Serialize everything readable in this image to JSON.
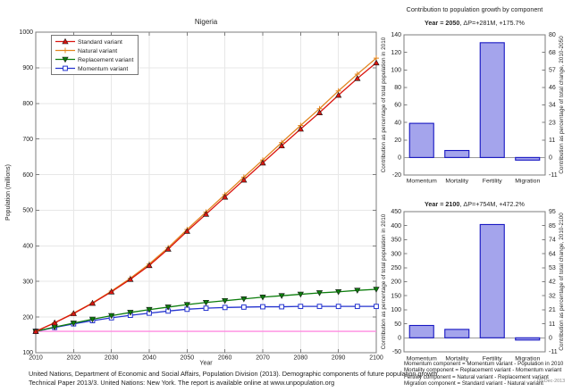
{
  "colors": {
    "standard": "#da1610",
    "natural": "#e2851f",
    "replacement": "#0c7d0c",
    "momentum": "#2433cf",
    "baseline": "#ff8ae0",
    "bar_fill": "#a4a4ec",
    "bar_edge": "#1717c2",
    "grid": "#e7e7e7",
    "axis": "#7d7d7d",
    "zero_line": "#9a9a9a",
    "text": "#242424"
  },
  "chart_data": [
    {
      "type": "line",
      "title": "Nigeria",
      "xlabel": "Year",
      "ylabel": "Population (millions)",
      "xlim": [
        2010,
        2100
      ],
      "ylim": [
        100,
        1000
      ],
      "xticks": [
        2010,
        2020,
        2030,
        2040,
        2050,
        2060,
        2070,
        2080,
        2090,
        2100
      ],
      "yticks": [
        100,
        200,
        300,
        400,
        500,
        600,
        700,
        800,
        900,
        1000
      ],
      "grid": true,
      "legend_position": "top-left",
      "x": [
        2010,
        2015,
        2020,
        2025,
        2030,
        2035,
        2040,
        2045,
        2050,
        2055,
        2060,
        2065,
        2070,
        2075,
        2080,
        2085,
        2090,
        2095,
        2100
      ],
      "series": [
        {
          "name": "Standard variant",
          "marker": "triangle-up",
          "color_key": "standard",
          "values": [
            160,
            184,
            210,
            239,
            271,
            306,
            345,
            391,
            441,
            489,
            537,
            585,
            633,
            681,
            728,
            774,
            823,
            870,
            914
          ]
        },
        {
          "name": "Natural variant",
          "marker": "plus",
          "color_key": "natural",
          "values": [
            160,
            184,
            211,
            240,
            273,
            309,
            349,
            395,
            446,
            495,
            544,
            593,
            641,
            690,
            738,
            785,
            835,
            882,
            927
          ]
        },
        {
          "name": "Replacement variant",
          "marker": "triangle-down",
          "color_key": "replacement",
          "values": [
            160,
            172,
            183,
            194,
            204,
            213,
            221,
            228,
            235,
            241,
            246,
            251,
            256,
            260,
            264,
            268,
            271,
            275,
            278
          ]
        },
        {
          "name": "Momentum variant",
          "marker": "square",
          "color_key": "momentum",
          "values": [
            160,
            171,
            181,
            190,
            198,
            205,
            211,
            217,
            222,
            225,
            227,
            228,
            229,
            229,
            230,
            230,
            230,
            230,
            230
          ]
        }
      ],
      "baseline_value": 160
    },
    {
      "type": "bar",
      "suptitle": "Contribution to population growth by component",
      "title_bold": "Year = 2050",
      "title_rest": ", ΔP=+281M, +175.7%",
      "categories": [
        "Momentum",
        "Mortality",
        "Fertility",
        "Migration"
      ],
      "values": [
        39,
        8,
        131,
        -3
      ],
      "ylabel_left": "Contribution as percentage of total population in 2010",
      "ylabel_right": "Contribution as percentage of total change, 2010-2050",
      "ylim": [
        -20,
        140
      ],
      "yticks_left": [
        -20,
        0,
        20,
        40,
        60,
        80,
        100,
        120,
        140
      ],
      "yticks_right": [
        -11,
        0,
        11,
        23,
        34,
        46,
        57,
        68,
        80
      ],
      "grid": false
    },
    {
      "type": "bar",
      "suptitle": "",
      "title_bold": "Year = 2100",
      "title_rest": ", ΔP=+754M, +472.2%",
      "categories": [
        "Momentum",
        "Mortality",
        "Fertility",
        "Migration"
      ],
      "values": [
        44,
        30,
        404,
        -8
      ],
      "ylabel_left": "Contribution as percentage of total population in 2010",
      "ylabel_right": "Contribution as percentage of total change, 2010-2100",
      "ylim": [
        -50,
        450
      ],
      "yticks_left": [
        -50,
        0,
        50,
        100,
        150,
        200,
        250,
        300,
        350,
        400,
        450
      ],
      "yticks_right": [
        -11,
        0,
        11,
        21,
        32,
        42,
        53,
        64,
        74,
        85,
        95
      ],
      "grid": false
    }
  ],
  "footer": {
    "line1": "United Nations, Department of Economic and Social Affairs, Population Division (2013). Demographic components of future population growth.",
    "line2": "Technical Paper 2013/3. United Nations: New York. The report is available online at www.unpopulation.org"
  },
  "footnotes": {
    "lines": [
      "Momentum component = Momentum variant - Population in 2010",
      "Mortality component = Replacement variant - Momentum variant",
      "Fertility component = Natural variant - Replacement variant",
      "Migration component = Standard variant - Natural variant"
    ],
    "datestamp": "09-Dec-2013"
  }
}
